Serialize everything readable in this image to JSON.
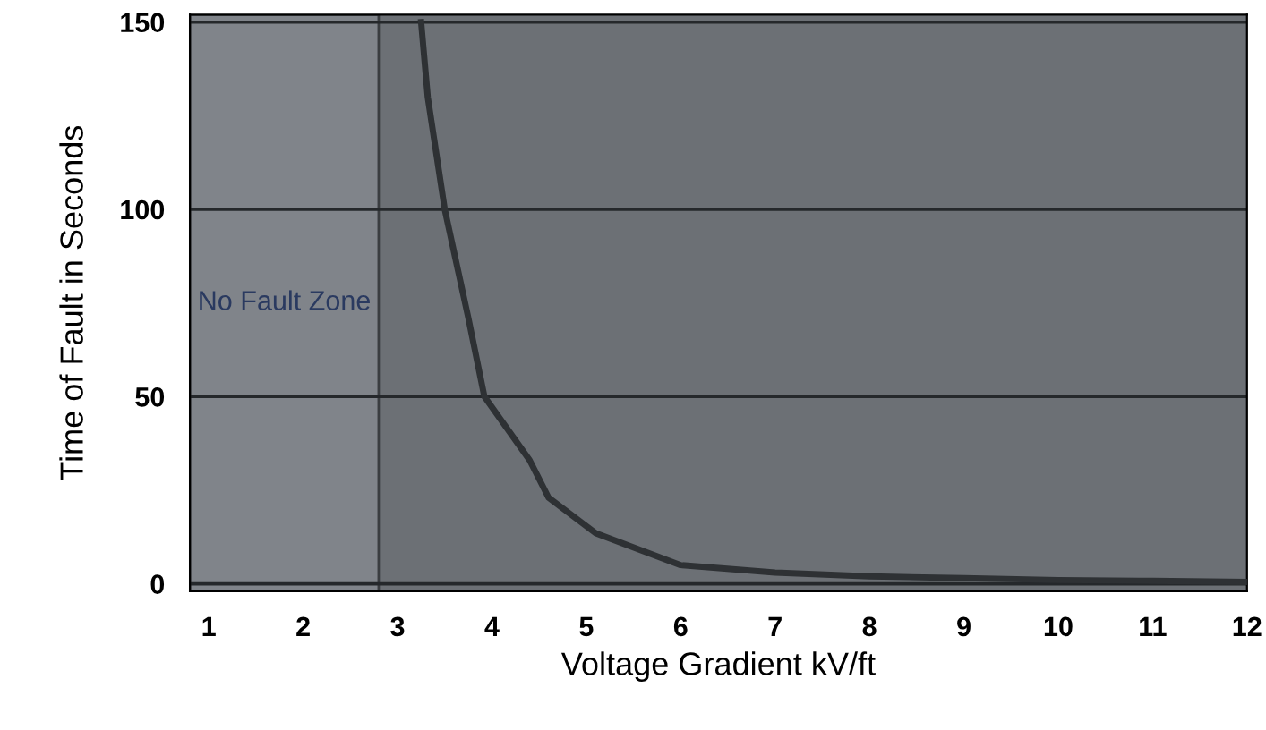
{
  "chart_data": {
    "type": "line",
    "xlabel": "Voltage Gradient kV/ft",
    "ylabel": "Time of Fault in Seconds",
    "x": [
      3.25,
      3.32,
      3.5,
      3.75,
      3.92,
      4.4,
      4.6,
      5.1,
      6,
      7,
      8,
      9,
      10,
      11,
      12
    ],
    "series": [
      {
        "color": "#2e3134",
        "values": [
          150,
          130,
          100,
          71,
          50,
          33,
          23,
          13.5,
          5,
          3,
          2,
          1.5,
          1,
          0.8,
          0.5
        ]
      }
    ],
    "xlim": [
      0.8,
      12
    ],
    "ylim": [
      -2,
      152
    ],
    "xticks": [
      1,
      2,
      3,
      4,
      5,
      6,
      7,
      8,
      9,
      10,
      11,
      12
    ],
    "yticks": [
      0,
      50,
      100,
      150
    ],
    "grid": "y",
    "bands": [
      {
        "axis": "x",
        "from": 0.8,
        "to": 2.8,
        "label": "No Fault Zone",
        "color": "#80848a"
      }
    ],
    "marker": "none",
    "line_style": "solid",
    "legend": false
  }
}
